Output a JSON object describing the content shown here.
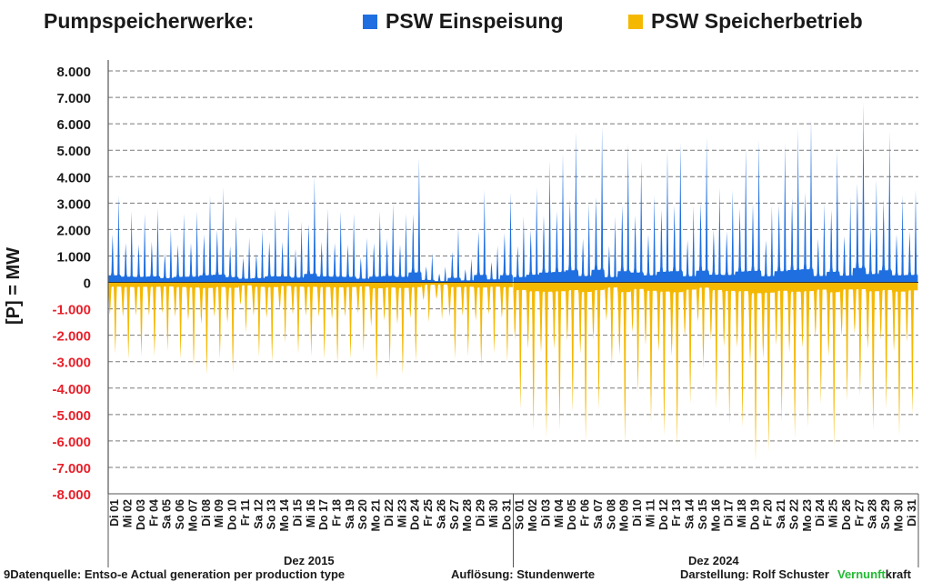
{
  "header": {
    "title": "Pumpspeicherwerke:",
    "legend": [
      {
        "label": "PSW Einspeisung",
        "color": "#1f6fe0"
      },
      {
        "label": "PSW Speicherbetrieb",
        "color": "#f5b800"
      }
    ]
  },
  "chart_data": {
    "type": "area",
    "ylabel": "[P]  = MW",
    "ylim": [
      -8000,
      8000
    ],
    "yticks": [
      "8.000",
      "7.000",
      "6.000",
      "5.000",
      "4.000",
      "3.000",
      "2.000",
      "1.000",
      "0",
      "-1.000",
      "-2.000",
      "-3.000",
      "-4.000",
      "-5.000",
      "-6.000",
      "-7.000",
      "-8.000"
    ],
    "grid": true,
    "legend_position": "top",
    "resolution": "hourly",
    "panels": [
      {
        "period": "Dez 2015",
        "days": [
          "Di 01",
          "Mi 02",
          "Do 03",
          "Fr 04",
          "Sa 05",
          "So 06",
          "Mo 07",
          "Di 08",
          "Mi 09",
          "Do 10",
          "Fr 11",
          "Sa 12",
          "So 13",
          "Mo 14",
          "Di 15",
          "Mi 16",
          "Do 17",
          "Fr 18",
          "Sa 19",
          "So 20",
          "Mo 21",
          "Di 22",
          "Mi 23",
          "Do 24",
          "Fr 25",
          "Sa 26",
          "So 27",
          "Mo 28",
          "Di 29",
          "Mi 30",
          "Do 31"
        ],
        "series": [
          {
            "name": "PSW Einspeisung",
            "daily_peak_mw": [
              3300,
              2700,
              2600,
              2800,
              2000,
              2600,
              2700,
              3300,
              3600,
              2500,
              1700,
              2000,
              2800,
              2800,
              2300,
              4000,
              2800,
              2700,
              2600,
              1700,
              2700,
              3000,
              2600,
              4700,
              1100,
              600,
              2100,
              900,
              3500,
              1400,
              3400
            ]
          },
          {
            "name": "PSW Speicherbetrieb",
            "daily_peak_mw": [
              -2700,
              -2900,
              -2800,
              -2800,
              -2600,
              -2900,
              -3200,
              -3500,
              -2900,
              -3400,
              -1900,
              -2800,
              -3000,
              -2300,
              -2700,
              -2800,
              -2900,
              -3100,
              -2900,
              -2600,
              -3700,
              -3200,
              -3500,
              -3000,
              -1500,
              -1400,
              -2900,
              -2800,
              -3200,
              -2700,
              -3000
            ]
          }
        ]
      },
      {
        "period": "Dez 2024",
        "days": [
          "So 01",
          "Mo 02",
          "Di 03",
          "Mi 04",
          "Do 05",
          "Fr 06",
          "Sa 07",
          "So 08",
          "Mo 09",
          "Di 10",
          "Mi 11",
          "Do 12",
          "Fr 13",
          "Sa 14",
          "So 15",
          "Mo 16",
          "Di 17",
          "Mi 18",
          "Do 19",
          "Fr 20",
          "Sa 21",
          "So 22",
          "Mo 23",
          "Di 24",
          "Mi 25",
          "Do 26",
          "Fr 27",
          "Sa 28",
          "So 29",
          "Mo 30",
          "Di 31"
        ],
        "series": [
          {
            "name": "PSW Einspeisung",
            "daily_peak_mw": [
              2500,
              3600,
              4600,
              4900,
              5700,
              3000,
              5900,
              2500,
              5300,
              4600,
              3300,
              5000,
              5300,
              2900,
              5500,
              3600,
              3500,
              5100,
              5400,
              2900,
              5300,
              5800,
              6200,
              3000,
              5000,
              3200,
              6800,
              3900,
              5700,
              3300,
              3500
            ]
          },
          {
            "name": "PSW Speicherbetrieb",
            "daily_peak_mw": [
              -4800,
              -5600,
              -5900,
              -5600,
              -4900,
              -6000,
              -4800,
              -3200,
              -6100,
              -4200,
              -5300,
              -5800,
              -6200,
              -4600,
              -3300,
              -4800,
              -5400,
              -5500,
              -6800,
              -6400,
              -5300,
              -5900,
              -5500,
              -4600,
              -6200,
              -4500,
              -4300,
              -5600,
              -4800,
              -5800,
              -5000
            ]
          }
        ]
      }
    ]
  },
  "footer": {
    "source": "9Datenquelle: Entso-e  Actual generation per production type",
    "resolution": "Auflösung: Stundenwerte",
    "credit": "Darstellung:  Rolf Schuster",
    "brand_green": "Vernunft",
    "brand_black": "kraft"
  }
}
